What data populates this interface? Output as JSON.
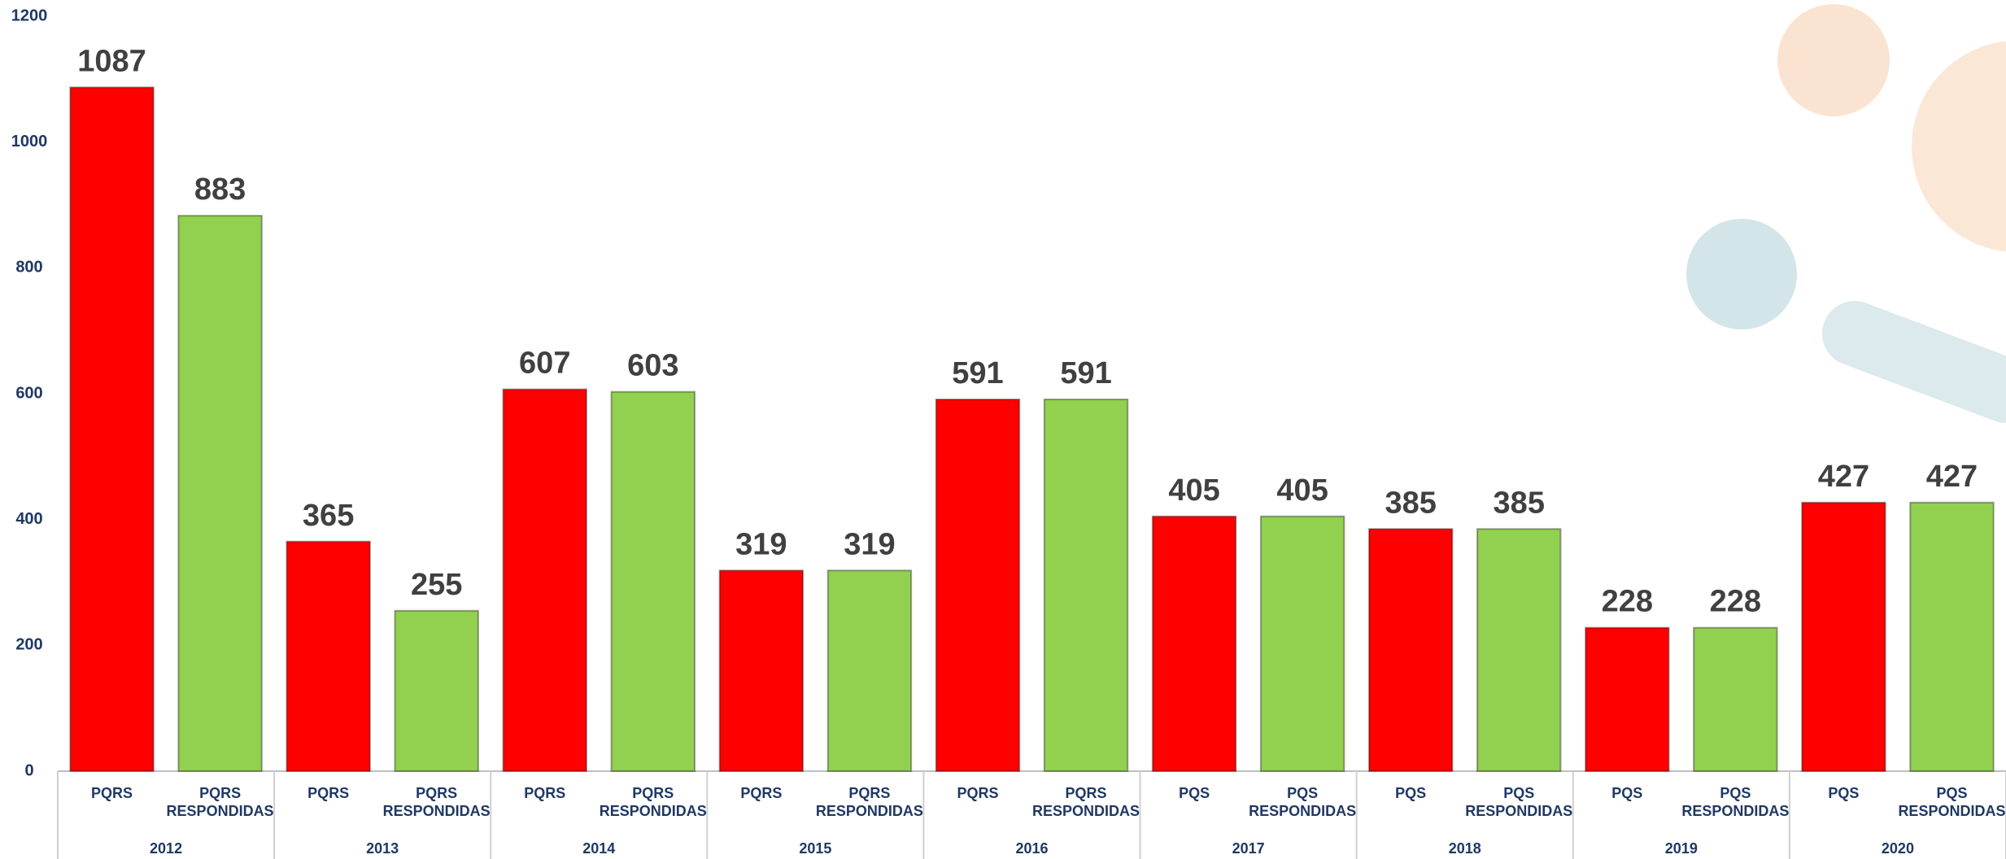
{
  "chart_data": {
    "type": "bar",
    "categories": [
      "PQRS",
      "PQRS RESPONDIDAS",
      "PQRS",
      "PQRS RESPONDIDAS",
      "PQRS",
      "PQRS RESPONDIDAS",
      "PQRS",
      "PQRS RESPONDIDAS",
      "PQRS",
      "PQRS RESPONDIDAS",
      "PQS",
      "PQS RESPONDIDAS",
      "PQS",
      "PQS RESPONDIDAS",
      "PQS",
      "PQS RESPONDIDAS",
      "PQS",
      "PQS RESPONDIDAS"
    ],
    "groups": [
      "2012",
      "2013",
      "2014",
      "2015",
      "2016",
      "2017",
      "2018",
      "2019",
      "2020"
    ],
    "values": [
      1087,
      883,
      365,
      255,
      607,
      603,
      319,
      319,
      591,
      591,
      405,
      405,
      385,
      385,
      228,
      228,
      427,
      427
    ],
    "colors": [
      "#ff0000",
      "#92d050"
    ],
    "ylim": [
      0,
      1200
    ],
    "yticks": [
      0,
      200,
      400,
      600,
      800,
      1000,
      1200
    ],
    "grid": false
  }
}
